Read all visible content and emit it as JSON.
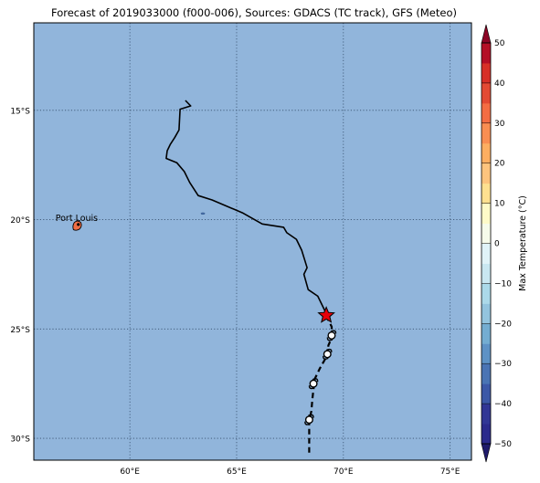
{
  "title": "Forecast of 2019033000 (f000-006), Sources: GDACS (TC track), GFS (Meteo)",
  "map": {
    "lon_range": [
      55.5,
      76
    ],
    "lat_range": [
      -31,
      -11
    ],
    "background_color": "#91b5db",
    "gridlines": true,
    "lon_ticks": [
      {
        "value": 60,
        "label": "60°E"
      },
      {
        "value": 65,
        "label": "65°E"
      },
      {
        "value": 70,
        "label": "70°E"
      },
      {
        "value": 75,
        "label": "75°E"
      }
    ],
    "lat_ticks": [
      {
        "value": -15,
        "label": "15°S"
      },
      {
        "value": -20,
        "label": "20°S"
      },
      {
        "value": -25,
        "label": "25°S"
      },
      {
        "value": -30,
        "label": "30°S"
      }
    ]
  },
  "places": [
    {
      "name": "Port Louis",
      "lon": 57.5,
      "lat": -20.16
    }
  ],
  "islands": [
    {
      "name": "mauritius",
      "lon": 57.55,
      "lat": -20.25,
      "color": "#f06e45"
    },
    {
      "name": "rodrigues",
      "lon": 63.42,
      "lat": -19.72,
      "color": "#4a74b4"
    }
  ],
  "past_track": [
    [
      62.6,
      -14.55
    ],
    [
      62.85,
      -14.8
    ],
    [
      62.35,
      -14.95
    ],
    [
      62.3,
      -15.9
    ],
    [
      62.1,
      -16.25
    ],
    [
      61.9,
      -16.55
    ],
    [
      61.75,
      -16.85
    ],
    [
      61.7,
      -17.2
    ],
    [
      62.2,
      -17.4
    ],
    [
      62.55,
      -17.8
    ],
    [
      62.8,
      -18.3
    ],
    [
      63.2,
      -18.9
    ],
    [
      63.85,
      -19.1
    ],
    [
      65.3,
      -19.7
    ],
    [
      66.2,
      -20.2
    ],
    [
      67.2,
      -20.35
    ],
    [
      67.35,
      -20.6
    ],
    [
      67.8,
      -20.9
    ],
    [
      68.05,
      -21.4
    ],
    [
      68.3,
      -22.2
    ],
    [
      68.15,
      -22.5
    ],
    [
      68.35,
      -23.2
    ],
    [
      68.8,
      -23.5
    ],
    [
      69.2,
      -24.3
    ]
  ],
  "current_position": {
    "lon": 69.2,
    "lat": -24.38,
    "color": "#e6000a"
  },
  "forecast_track": [
    [
      69.2,
      -24.4
    ],
    [
      69.45,
      -24.9
    ],
    [
      69.45,
      -25.4
    ],
    [
      69.3,
      -25.75
    ],
    [
      69.25,
      -26.2
    ],
    [
      68.9,
      -26.8
    ],
    [
      68.65,
      -27.3
    ],
    [
      68.6,
      -27.75
    ],
    [
      68.55,
      -28.2
    ],
    [
      68.5,
      -28.75
    ],
    [
      68.4,
      -29.2
    ],
    [
      68.4,
      -30.8
    ]
  ],
  "storm_symbols": [
    {
      "lon": 69.45,
      "lat": -25.3
    },
    {
      "lon": 69.25,
      "lat": -26.15
    },
    {
      "lon": 68.6,
      "lat": -27.5
    },
    {
      "lon": 68.4,
      "lat": -29.15
    }
  ],
  "colorbar": {
    "label": "Max Temperature (°C)",
    "min": -50,
    "max": 50,
    "ticks": [
      -50,
      -40,
      -30,
      -20,
      -10,
      0,
      10,
      20,
      30,
      40,
      50
    ],
    "tick_labels": [
      "−50",
      "−40",
      "−30",
      "−20",
      "−10",
      "0",
      "10",
      "20",
      "30",
      "40",
      "50"
    ],
    "bands": [
      {
        "from": -50,
        "to": -45,
        "color": "#2b2a8c"
      },
      {
        "from": -45,
        "to": -40,
        "color": "#313695"
      },
      {
        "from": -40,
        "to": -35,
        "color": "#3c58a7"
      },
      {
        "from": -35,
        "to": -30,
        "color": "#4a74b4"
      },
      {
        "from": -30,
        "to": -25,
        "color": "#5e92c5"
      },
      {
        "from": -25,
        "to": -20,
        "color": "#74add1"
      },
      {
        "from": -20,
        "to": -15,
        "color": "#93c4de"
      },
      {
        "from": -15,
        "to": -10,
        "color": "#abd9e9"
      },
      {
        "from": -10,
        "to": -5,
        "color": "#c9e7f1"
      },
      {
        "from": -5,
        "to": 0,
        "color": "#e0f3f8"
      },
      {
        "from": 0,
        "to": 5,
        "color": "#f6fbea"
      },
      {
        "from": 5,
        "to": 10,
        "color": "#fefac8"
      },
      {
        "from": 10,
        "to": 15,
        "color": "#fee090"
      },
      {
        "from": 15,
        "to": 20,
        "color": "#fdc47e"
      },
      {
        "from": 20,
        "to": 25,
        "color": "#fdae61"
      },
      {
        "from": 25,
        "to": 30,
        "color": "#f98e52"
      },
      {
        "from": 30,
        "to": 35,
        "color": "#f46d43"
      },
      {
        "from": 35,
        "to": 40,
        "color": "#e34a33"
      },
      {
        "from": 40,
        "to": 45,
        "color": "#d73027"
      },
      {
        "from": 45,
        "to": 50,
        "color": "#b40f26"
      }
    ],
    "under_color": "#1f1b6b",
    "over_color": "#8c0525"
  }
}
